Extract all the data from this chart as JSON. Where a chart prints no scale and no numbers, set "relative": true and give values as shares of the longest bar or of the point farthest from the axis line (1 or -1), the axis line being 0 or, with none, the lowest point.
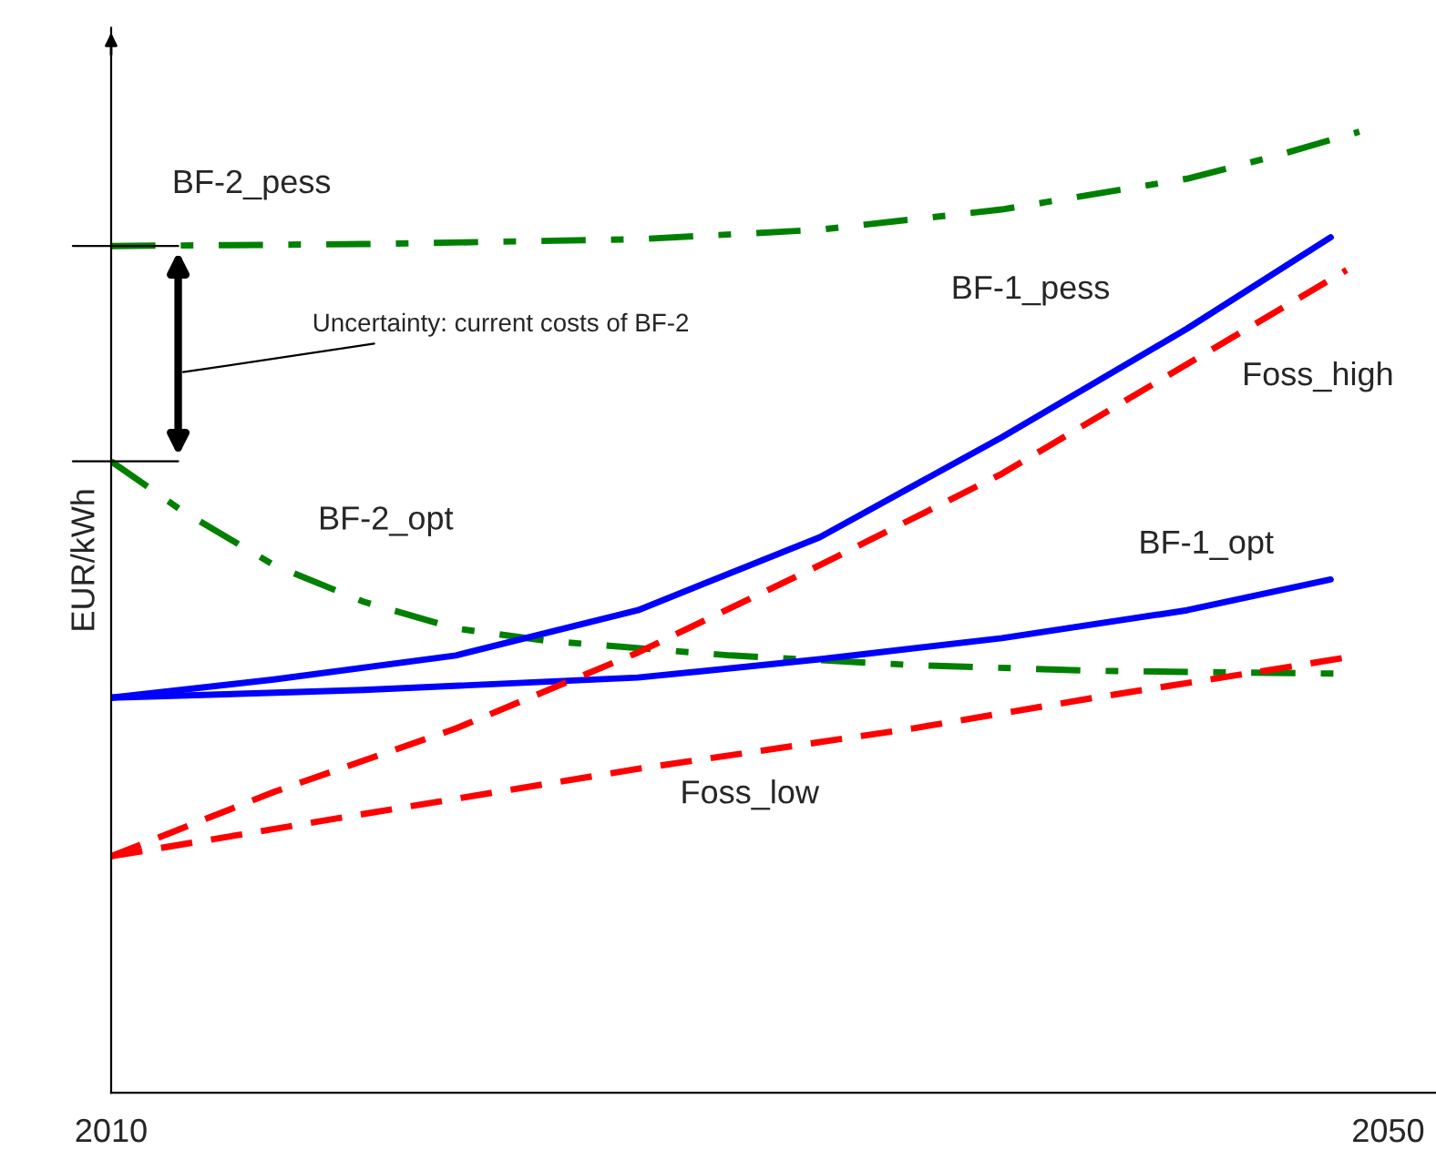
{
  "chart_data": {
    "type": "line",
    "relative": true,
    "ylabel": "EUR/kWh",
    "xlim": [
      2010,
      2051.5
    ],
    "xticks": [
      2010,
      2050
    ],
    "grid": false,
    "legend": false,
    "annotations": [
      "Uncertainty: current costs of BF-2"
    ],
    "series": [
      {
        "name": "BF-2_pess",
        "color": "#008000",
        "line_style": "dashdot",
        "x": [
          2010,
          2017.9,
          2026.5,
          2032.2,
          2037.9,
          2043.7,
          2046.5,
          2049.1
        ],
        "values": [
          0.881,
          0.883,
          0.888,
          0.898,
          0.919,
          0.951,
          0.975,
          1
        ]
      },
      {
        "name": "BF-2_opt",
        "color": "#008000",
        "line_style": "dashdot",
        "x": [
          2010,
          2012.2,
          2015.1,
          2017.9,
          2020.8,
          2023.7,
          2029.4,
          2035.1,
          2040.8,
          2048.5
        ],
        "values": [
          0.657,
          0.606,
          0.549,
          0.511,
          0.483,
          0.47,
          0.455,
          0.445,
          0.439,
          0.436
        ]
      },
      {
        "name": "BF-1_pess",
        "color": "#0000ff",
        "line_style": "solid",
        "x": [
          2010,
          2015.1,
          2020.8,
          2026.5,
          2032.2,
          2037.9,
          2043.7,
          2048.2
        ],
        "values": [
          0.411,
          0.43,
          0.455,
          0.502,
          0.578,
          0.682,
          0.795,
          0.89
        ]
      },
      {
        "name": "BF-1_opt",
        "color": "#0000ff",
        "line_style": "solid",
        "x": [
          2010,
          2017.9,
          2026.5,
          2032.2,
          2037.9,
          2043.7,
          2048.2
        ],
        "values": [
          0.411,
          0.419,
          0.432,
          0.451,
          0.473,
          0.502,
          0.534
        ]
      },
      {
        "name": "Foss_high",
        "color": "#ff0000",
        "line_style": "dashed",
        "x": [
          2010,
          2015.1,
          2020.8,
          2026.5,
          2032.2,
          2037.9,
          2043.7,
          2048.7
        ],
        "values": [
          0.246,
          0.313,
          0.379,
          0.458,
          0.549,
          0.644,
          0.758,
          0.856
        ]
      },
      {
        "name": "Foss_low",
        "color": "#ff0000",
        "line_style": "dashed",
        "x": [
          2010,
          2017.9,
          2026.5,
          2035.1,
          2040.8,
          2046.5,
          2048.7
        ],
        "values": [
          0.246,
          0.29,
          0.337,
          0.379,
          0.411,
          0.441,
          0.453
        ]
      }
    ]
  }
}
